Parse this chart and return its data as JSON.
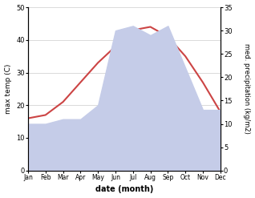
{
  "months": [
    "Jan",
    "Feb",
    "Mar",
    "Apr",
    "May",
    "Jun",
    "Jul",
    "Aug",
    "Sep",
    "Oct",
    "Nov",
    "Dec"
  ],
  "temp": [
    16,
    17,
    21,
    27,
    33,
    38,
    43,
    44,
    41,
    35,
    27,
    18
  ],
  "precip": [
    10,
    10,
    11,
    11,
    14,
    30,
    31,
    29,
    31,
    22,
    13,
    13
  ],
  "temp_color": "#cc4444",
  "precip_fill_color": "#c5cce8",
  "temp_ylim": [
    0,
    50
  ],
  "precip_ylim": [
    0,
    35
  ],
  "temp_ylabel": "max temp (C)",
  "precip_ylabel": "med. precipitation (kg/m2)",
  "xlabel": "date (month)",
  "temp_yticks": [
    0,
    10,
    20,
    30,
    40,
    50
  ],
  "precip_yticks": [
    0,
    5,
    10,
    15,
    20,
    25,
    30,
    35
  ],
  "bg_color": "#ffffff"
}
